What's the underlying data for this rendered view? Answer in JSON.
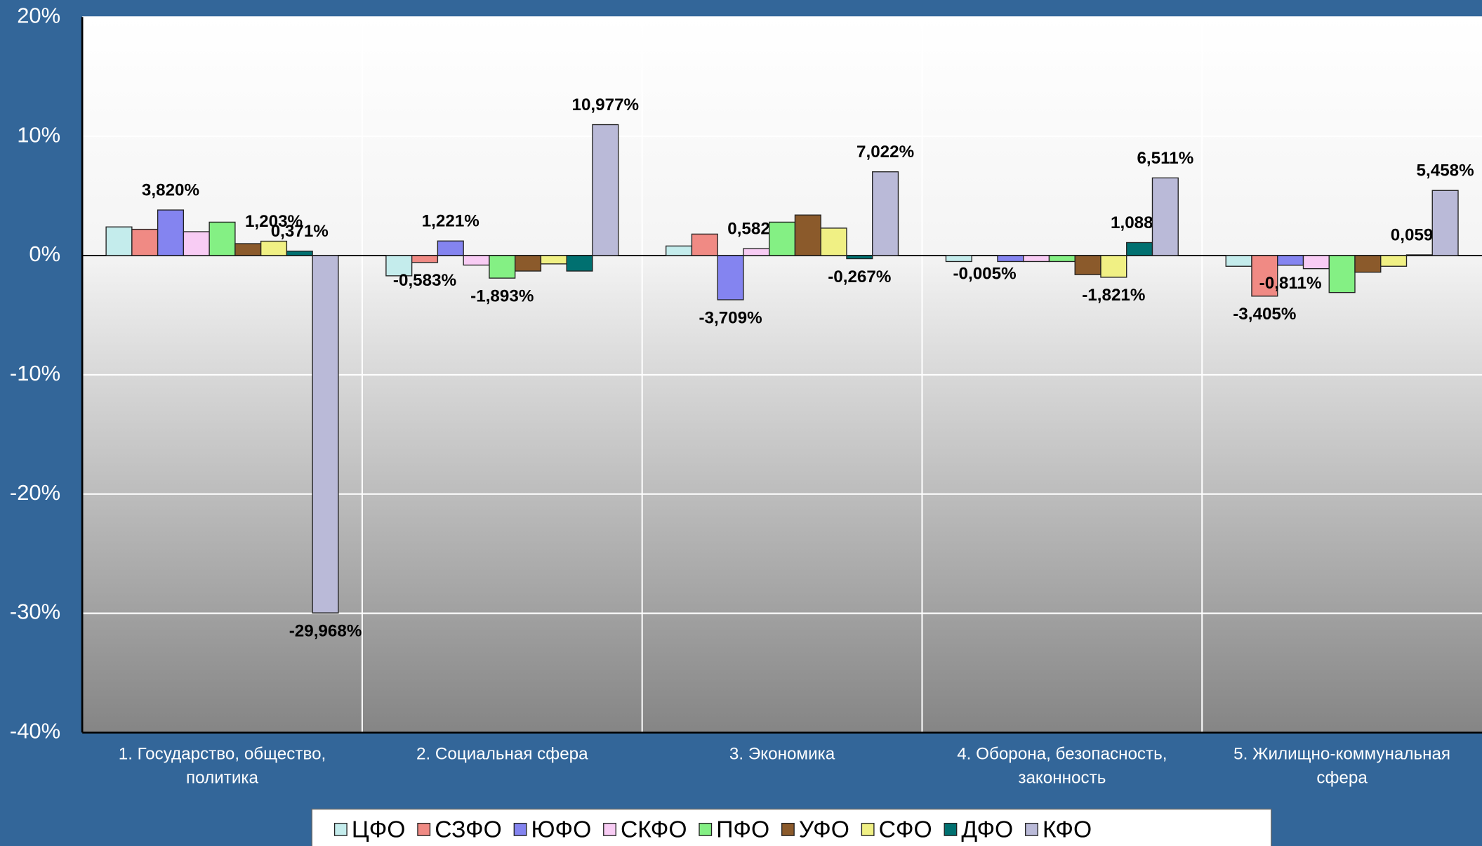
{
  "chart_data": {
    "type": "bar",
    "categories": [
      "1. Государство, общество, политика",
      "2. Социальная сфера",
      "3. Экономика",
      "4. Оборона, безопасность, законность",
      "5. Жилищно-коммунальная сфера"
    ],
    "series": [
      {
        "name": "ЦФО",
        "color": "#c4ecec",
        "values": [
          2.4,
          -1.7,
          0.8,
          -0.5,
          -0.9
        ],
        "value_labels": [
          null,
          null,
          null,
          null,
          null
        ]
      },
      {
        "name": "СЗФО",
        "color": "#f08a84",
        "values": [
          2.2,
          -0.583,
          1.8,
          -0.005,
          -3.405
        ],
        "value_labels": [
          null,
          "-0,583%",
          null,
          "-0,005%",
          "-3,405%"
        ]
      },
      {
        "name": "ЮФО",
        "color": "#8484f0",
        "values": [
          3.82,
          1.221,
          -3.709,
          -0.5,
          -0.811
        ],
        "value_labels": [
          "3,820%",
          "1,221%",
          "-3,709%",
          null,
          "-0,811%"
        ]
      },
      {
        "name": "СКФО",
        "color": "#f8ccf4",
        "values": [
          2.0,
          -0.8,
          0.582,
          -0.5,
          -1.1
        ],
        "value_labels": [
          null,
          null,
          "0,582%",
          null,
          null
        ]
      },
      {
        "name": "ПФО",
        "color": "#84f084",
        "values": [
          2.8,
          -1.893,
          2.8,
          -0.5,
          -3.1
        ],
        "value_labels": [
          null,
          "-1,893%",
          null,
          null,
          null
        ]
      },
      {
        "name": "УФО",
        "color": "#8b5a2b",
        "values": [
          1.0,
          -1.3,
          3.4,
          -1.6,
          -1.4
        ],
        "value_labels": [
          null,
          null,
          null,
          null,
          null
        ]
      },
      {
        "name": "СФО",
        "color": "#f0f084",
        "values": [
          1.203,
          -0.7,
          2.3,
          -1.821,
          -0.9
        ],
        "value_labels": [
          "1,203%",
          null,
          null,
          "-1,821%",
          null
        ]
      },
      {
        "name": "ДФО",
        "color": "#007070",
        "values": [
          0.371,
          -1.3,
          -0.267,
          1.088,
          0.059
        ],
        "value_labels": [
          "0,371%",
          null,
          "-0,267%",
          "1,088%",
          "0,059%"
        ]
      },
      {
        "name": "КФО",
        "color": "#babad8",
        "values": [
          -29.968,
          10.977,
          7.022,
          6.511,
          5.458
        ],
        "value_labels": [
          "-29,968%",
          "10,977%",
          "7,022%",
          "6,511%",
          "5,458%"
        ]
      }
    ],
    "ylim": [
      -40,
      20
    ],
    "yticks": [
      {
        "value": -40,
        "label": "-40%"
      },
      {
        "value": -30,
        "label": "-30%"
      },
      {
        "value": -20,
        "label": "-20%"
      },
      {
        "value": -10,
        "label": "-10%"
      },
      {
        "value": 0,
        "label": "0%"
      },
      {
        "value": 10,
        "label": "10%"
      },
      {
        "value": 20,
        "label": "20%"
      }
    ],
    "grid": true,
    "legend": "bottom"
  }
}
